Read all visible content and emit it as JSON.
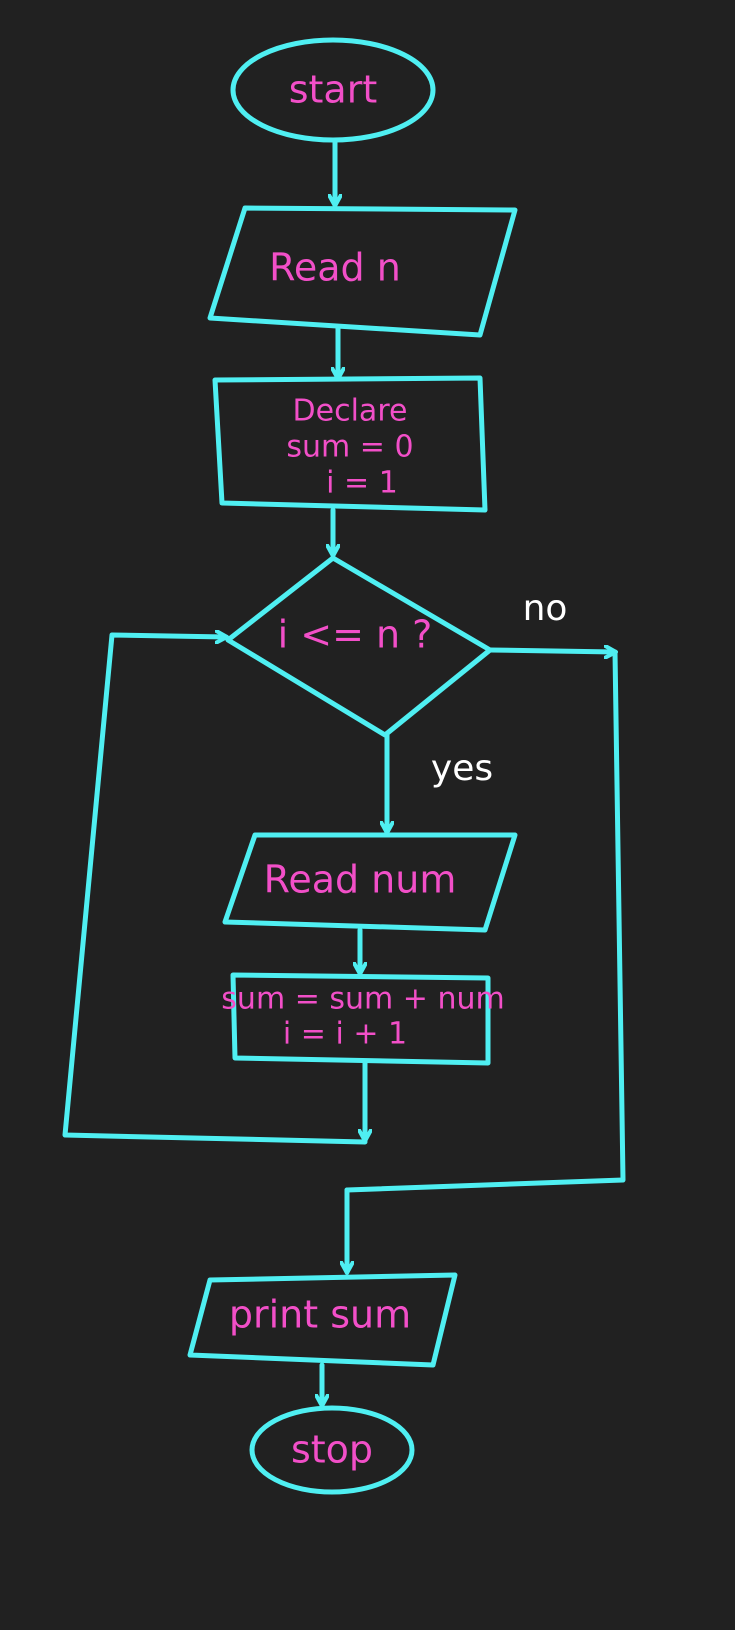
{
  "colors": {
    "background": "#212121",
    "stroke": "#4FEFF2",
    "node_text": "#F24FC8",
    "edge_text": "#FFFFFF"
  },
  "nodes": {
    "start": {
      "shape": "terminal",
      "text": "start"
    },
    "read_n": {
      "shape": "input-output",
      "text": "Read n"
    },
    "declare": {
      "shape": "process",
      "lines": [
        "Declare",
        "sum = 0",
        "i = 1"
      ]
    },
    "condition": {
      "shape": "decision",
      "text": "i <= n ?"
    },
    "read_num": {
      "shape": "input-output",
      "text": "Read num"
    },
    "update": {
      "shape": "process",
      "lines": [
        "sum = sum + num",
        "i = i + 1"
      ]
    },
    "print_sum": {
      "shape": "input-output",
      "text": "print sum"
    },
    "stop": {
      "shape": "terminal",
      "text": "stop"
    }
  },
  "edges": {
    "yes_label": "yes",
    "no_label": "no"
  }
}
